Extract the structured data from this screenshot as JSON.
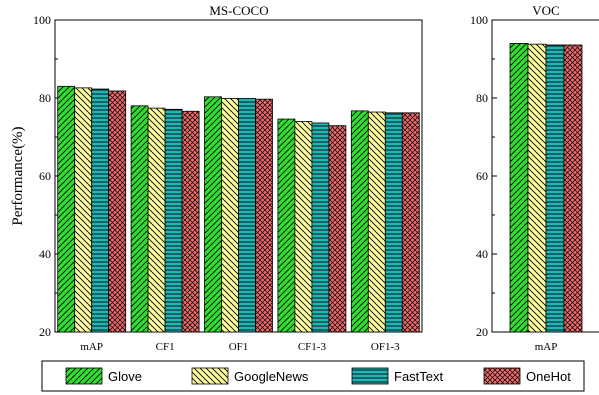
{
  "chart_data": [
    {
      "type": "bar",
      "title": "MS-COCO",
      "ylabel": "Performance(%)",
      "xlabel": "",
      "ylim": [
        20,
        100
      ],
      "yticks": [
        20,
        40,
        60,
        80,
        100
      ],
      "categories": [
        "mAP",
        "CF1",
        "OF1",
        "CF1-3",
        "OF1-3"
      ],
      "series": [
        {
          "name": "Glove",
          "values": [
            83.0,
            78.0,
            80.3,
            74.6,
            76.7
          ]
        },
        {
          "name": "GoogleNews",
          "values": [
            82.6,
            77.4,
            79.9,
            74.0,
            76.4
          ]
        },
        {
          "name": "FastText",
          "values": [
            82.3,
            77.1,
            79.9,
            73.6,
            76.2
          ]
        },
        {
          "name": "OneHot",
          "values": [
            81.8,
            76.6,
            79.7,
            72.9,
            76.2
          ]
        }
      ]
    },
    {
      "type": "bar",
      "title": "VOC",
      "ylim": [
        20,
        100
      ],
      "yticks": [
        20,
        40,
        60,
        80,
        100
      ],
      "categories": [
        "mAP"
      ],
      "series": [
        {
          "name": "Glove",
          "values": [
            94.0
          ]
        },
        {
          "name": "GoogleNews",
          "values": [
            93.8
          ]
        },
        {
          "name": "FastText",
          "values": [
            93.6
          ]
        },
        {
          "name": "OneHot",
          "values": [
            93.6
          ]
        }
      ]
    }
  ],
  "legend": {
    "placement": "bottom",
    "items": [
      {
        "label": "Glove",
        "color": "#33dd33",
        "pattern": "diagonal-hatch"
      },
      {
        "label": "GoogleNews",
        "color": "#ffff99",
        "pattern": "diagonal-hatch"
      },
      {
        "label": "FastText",
        "color": "#22b5b5",
        "pattern": "horizontal-hatch"
      },
      {
        "label": "OneHot",
        "color": "#ee6a6a",
        "pattern": "crosshatch"
      }
    ]
  }
}
